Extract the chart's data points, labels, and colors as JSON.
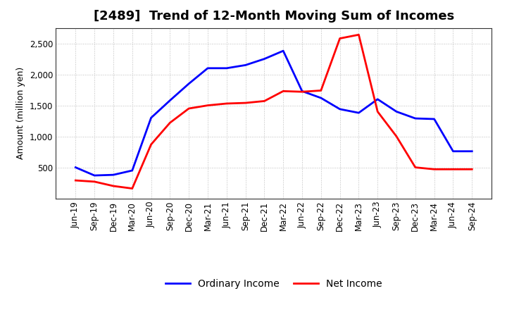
{
  "title": "[2489]  Trend of 12-Month Moving Sum of Incomes",
  "ylabel": "Amount (million yen)",
  "labels": [
    "Jun-19",
    "Sep-19",
    "Dec-19",
    "Mar-20",
    "Jun-20",
    "Sep-20",
    "Dec-20",
    "Mar-21",
    "Jun-21",
    "Sep-21",
    "Dec-21",
    "Mar-22",
    "Jun-22",
    "Sep-22",
    "Dec-22",
    "Mar-23",
    "Jun-23",
    "Sep-23",
    "Dec-23",
    "Mar-24",
    "Jun-24",
    "Sep-24"
  ],
  "ordinary_income": [
    500,
    370,
    380,
    450,
    1300,
    1580,
    1850,
    2100,
    2100,
    2150,
    2250,
    2380,
    1730,
    1620,
    1440,
    1380,
    1600,
    1400,
    1290,
    1280,
    760,
    760
  ],
  "net_income": [
    290,
    270,
    200,
    160,
    870,
    1220,
    1450,
    1500,
    1530,
    1540,
    1570,
    1730,
    1720,
    1740,
    2580,
    2640,
    1400,
    1000,
    500,
    470,
    470,
    470
  ],
  "ordinary_color": "#0000ff",
  "net_color": "#ff0000",
  "ylim": [
    0,
    2750
  ],
  "yticks": [
    500,
    1000,
    1500,
    2000,
    2500
  ],
  "background_color": "#ffffff",
  "grid_color": "#bbbbbb",
  "title_fontsize": 13,
  "legend_fontsize": 10,
  "axis_fontsize": 8.5,
  "ylabel_fontsize": 9
}
